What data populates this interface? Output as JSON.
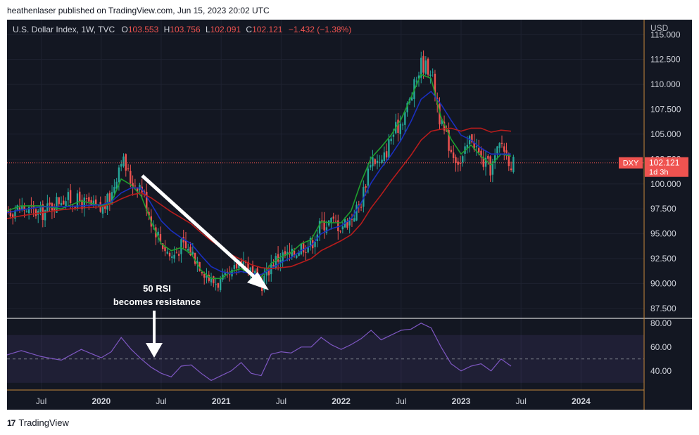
{
  "header": {
    "published": "heathenlaser published on TradingView.com, Jun 15, 2023 20:02 UTC"
  },
  "legend": {
    "symbol": "U.S. Dollar Index, 1W, TVC",
    "o_label": "O",
    "o_value": "103.553",
    "h_label": "H",
    "h_value": "103.756",
    "l_label": "L",
    "l_value": "102.091",
    "c_label": "C",
    "c_value": "102.121",
    "change": "−1.432 (−1.38%)"
  },
  "price_tag": {
    "symbol": "DXY",
    "price": "102.121",
    "countdown": "1d 3h"
  },
  "annotation": {
    "line1": "50 RSI",
    "line2": "becomes resistance"
  },
  "footer": {
    "logo_text": "17",
    "brand": "TradingView"
  },
  "colors": {
    "background": "#131722",
    "up": "#26a69a",
    "down": "#ef5350",
    "ema_fast": "#1e9e2e",
    "ema_mid": "#1a2fbf",
    "ema_slow": "#b71c1c",
    "rsi": "#7e57c2",
    "annotation": "#ffffff"
  },
  "chart_data": [
    {
      "type": "candlestick",
      "currency": "USD",
      "x_ticks": [
        "Jul",
        "2020",
        "Jul",
        "2021",
        "Jul",
        "2022",
        "Jul",
        "2023",
        "Jul",
        "2024"
      ],
      "y_ticks": [
        "87.500",
        "90.000",
        "92.500",
        "95.000",
        "97.500",
        "100.000",
        "102.500",
        "105.000",
        "107.500",
        "110.000",
        "112.500",
        "115.000"
      ],
      "ylim": [
        86.5,
        116.5
      ],
      "last_price": 102.121,
      "close_path": [
        {
          "t": "2019-03",
          "v": 97.2
        },
        {
          "t": "2019-05",
          "v": 97.6
        },
        {
          "t": "2019-07",
          "v": 97.0
        },
        {
          "t": "2019-09",
          "v": 98.6
        },
        {
          "t": "2019-11",
          "v": 98.2
        },
        {
          "t": "2020-01",
          "v": 97.3
        },
        {
          "t": "2020-02",
          "v": 98.8
        },
        {
          "t": "2020-03",
          "v": 102.8
        },
        {
          "t": "2020-04",
          "v": 100.2
        },
        {
          "t": "2020-05",
          "v": 99.8
        },
        {
          "t": "2020-06",
          "v": 96.4
        },
        {
          "t": "2020-07",
          "v": 94.2
        },
        {
          "t": "2020-08",
          "v": 92.6
        },
        {
          "t": "2020-09",
          "v": 93.8
        },
        {
          "t": "2020-10",
          "v": 93.2
        },
        {
          "t": "2020-11",
          "v": 91.8
        },
        {
          "t": "2020-12",
          "v": 90.2
        },
        {
          "t": "2021-01",
          "v": 90.1
        },
        {
          "t": "2021-02",
          "v": 90.6
        },
        {
          "t": "2021-03",
          "v": 92.8
        },
        {
          "t": "2021-04",
          "v": 91.0
        },
        {
          "t": "2021-05",
          "v": 89.8
        },
        {
          "t": "2021-06",
          "v": 92.0
        },
        {
          "t": "2021-07",
          "v": 92.8
        },
        {
          "t": "2021-08",
          "v": 92.7
        },
        {
          "t": "2021-09",
          "v": 93.8
        },
        {
          "t": "2021-10",
          "v": 94.0
        },
        {
          "t": "2021-11",
          "v": 96.0
        },
        {
          "t": "2021-12",
          "v": 96.2
        },
        {
          "t": "2022-01",
          "v": 95.8
        },
        {
          "t": "2022-02",
          "v": 96.6
        },
        {
          "t": "2022-03",
          "v": 98.2
        },
        {
          "t": "2022-04",
          "v": 102.8
        },
        {
          "t": "2022-05",
          "v": 101.8
        },
        {
          "t": "2022-06",
          "v": 104.7
        },
        {
          "t": "2022-07",
          "v": 106.3
        },
        {
          "t": "2022-08",
          "v": 108.7
        },
        {
          "t": "2022-09",
          "v": 112.1
        },
        {
          "t": "2022-10",
          "v": 111.5
        },
        {
          "t": "2022-11",
          "v": 105.9
        },
        {
          "t": "2022-12",
          "v": 103.5
        },
        {
          "t": "2023-01",
          "v": 101.9
        },
        {
          "t": "2023-02",
          "v": 104.9
        },
        {
          "t": "2023-03",
          "v": 102.4
        },
        {
          "t": "2023-04",
          "v": 101.5
        },
        {
          "t": "2023-05",
          "v": 104.2
        },
        {
          "t": "2023-06",
          "v": 102.1
        }
      ],
      "series": [
        {
          "name": "",
          "color": "#1e9e2e",
          "values": [
            97.1,
            97.8,
            97.8,
            97.5,
            98.3,
            97.8,
            98.1,
            100.5,
            99.9,
            98.8,
            96.2,
            94.0,
            93.3,
            93.6,
            93.0,
            91.3,
            90.5,
            90.5,
            91.2,
            91.5,
            90.9,
            90.6,
            92.0,
            92.7,
            93.1,
            94.0,
            94.4,
            96.2,
            96.1,
            96.1,
            97.3,
            100.2,
            102.6,
            103.7,
            104.9,
            106.5,
            108.7,
            111.0,
            110.6,
            106.7,
            104.5,
            103.0,
            103.9,
            102.8,
            101.9,
            103.0,
            102.8
          ]
        },
        {
          "name": "",
          "color": "#1a2fbf",
          "values": [
            97.0,
            97.4,
            97.7,
            97.7,
            97.8,
            97.9,
            98.2,
            99.1,
            99.6,
            99.6,
            98.0,
            96.3,
            95.3,
            94.6,
            94.0,
            92.8,
            91.7,
            91.2,
            91.0,
            91.2,
            91.0,
            90.9,
            91.5,
            92.1,
            92.6,
            93.3,
            93.8,
            95.0,
            95.5,
            95.8,
            96.5,
            98.1,
            100.1,
            101.6,
            102.9,
            104.4,
            106.3,
            108.5,
            109.3,
            108.0,
            106.4,
            104.9,
            104.4,
            103.6,
            103.0,
            103.0,
            103.0
          ]
        },
        {
          "name": "",
          "color": "#b71c1c",
          "values": [
            96.4,
            96.8,
            97.1,
            97.4,
            97.6,
            97.7,
            98.0,
            98.5,
            98.9,
            99.1,
            98.6,
            97.9,
            97.2,
            96.6,
            96.0,
            95.1,
            94.3,
            93.6,
            92.9,
            92.4,
            91.9,
            91.6,
            91.5,
            91.6,
            91.7,
            92.1,
            92.5,
            93.3,
            93.8,
            94.3,
            94.9,
            96.0,
            97.6,
            98.9,
            100.3,
            101.6,
            102.9,
            104.4,
            105.3,
            105.5,
            105.6,
            105.3,
            105.6,
            105.6,
            105.2,
            105.4,
            105.3
          ]
        }
      ]
    },
    {
      "type": "line",
      "indicator": "RSI",
      "y_ticks": [
        "40.00",
        "60.00",
        "80.00"
      ],
      "ylim": [
        24,
        84
      ],
      "band": [
        30,
        70
      ],
      "midline": 50,
      "series": [
        {
          "name": "",
          "color": "#7e57c2",
          "values": [
            52,
            57,
            52,
            49,
            58,
            51,
            56,
            68,
            58,
            50,
            43,
            38,
            35,
            44,
            45,
            38,
            32,
            36,
            40,
            47,
            38,
            36,
            54,
            56,
            55,
            60,
            60,
            68,
            62,
            58,
            62,
            67,
            74,
            66,
            70,
            74,
            75,
            80,
            76,
            60,
            46,
            40,
            44,
            46,
            40,
            50,
            44
          ]
        }
      ]
    }
  ]
}
